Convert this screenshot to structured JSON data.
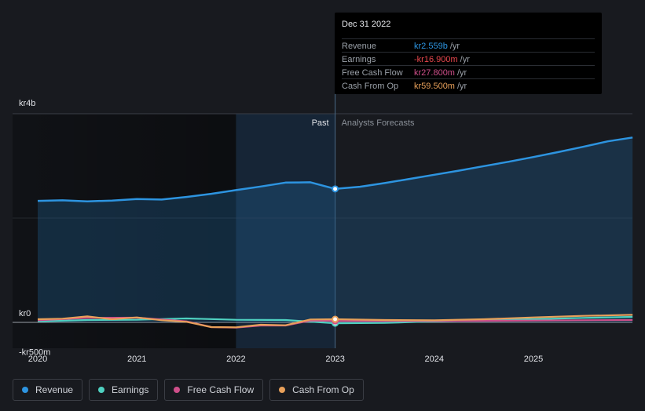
{
  "tooltip": {
    "date": "Dec 31 2022",
    "rows": [
      {
        "label": "Revenue",
        "value": "kr2.559b",
        "unit": "/yr",
        "color": "#2d94e0"
      },
      {
        "label": "Earnings",
        "value": "-kr16.900m",
        "unit": "/yr",
        "color": "#e8474d"
      },
      {
        "label": "Free Cash Flow",
        "value": "kr27.800m",
        "unit": "/yr",
        "color": "#cf4f8a"
      },
      {
        "label": "Cash From Op",
        "value": "kr59.500m",
        "unit": "/yr",
        "color": "#e8a05a"
      }
    ]
  },
  "legend": [
    {
      "label": "Revenue",
      "color": "#2d94e0"
    },
    {
      "label": "Earnings",
      "color": "#4fd1c1"
    },
    {
      "label": "Free Cash Flow",
      "color": "#cf4f8a"
    },
    {
      "label": "Cash From Op",
      "color": "#e8a05a"
    }
  ],
  "chart_data": {
    "type": "line",
    "ylim": [
      -500,
      4000
    ],
    "y_ticks": [
      {
        "value": 4000,
        "label": "kr4b"
      },
      {
        "value": 0,
        "label": "kr0"
      },
      {
        "value": -500,
        "label": "-kr500m"
      }
    ],
    "x_ticks": [
      {
        "value": 2020,
        "label": "2020"
      },
      {
        "value": 2021,
        "label": "2021"
      },
      {
        "value": 2022,
        "label": "2022"
      },
      {
        "value": 2023,
        "label": "2023"
      },
      {
        "value": 2024,
        "label": "2024"
      },
      {
        "value": 2025,
        "label": "2025"
      }
    ],
    "xlim": [
      2019.75,
      2026.0
    ],
    "divider": {
      "x": 2023.0,
      "past_label": "Past",
      "forecast_label": "Analysts Forecasts"
    },
    "highlight_start": 2022.0,
    "series": [
      {
        "name": "Revenue",
        "color": "#2d94e0",
        "fill": true,
        "points": [
          [
            2020.0,
            2330
          ],
          [
            2020.25,
            2340
          ],
          [
            2020.5,
            2320
          ],
          [
            2020.75,
            2335
          ],
          [
            2021.0,
            2365
          ],
          [
            2021.25,
            2355
          ],
          [
            2021.5,
            2405
          ],
          [
            2021.75,
            2465
          ],
          [
            2022.0,
            2535
          ],
          [
            2022.25,
            2605
          ],
          [
            2022.5,
            2680
          ],
          [
            2022.75,
            2685
          ],
          [
            2023.0,
            2559
          ],
          [
            2023.25,
            2600
          ],
          [
            2023.5,
            2670
          ],
          [
            2023.75,
            2750
          ],
          [
            2024.0,
            2830
          ],
          [
            2024.25,
            2910
          ],
          [
            2024.5,
            2995
          ],
          [
            2024.75,
            3080
          ],
          [
            2025.0,
            3170
          ],
          [
            2025.25,
            3265
          ],
          [
            2025.5,
            3365
          ],
          [
            2025.75,
            3470
          ],
          [
            2026.0,
            3545
          ]
        ]
      },
      {
        "name": "Earnings",
        "color": "#4fd1c1",
        "points": [
          [
            2020.0,
            20
          ],
          [
            2020.5,
            45
          ],
          [
            2021.0,
            50
          ],
          [
            2021.5,
            75
          ],
          [
            2022.0,
            50
          ],
          [
            2022.5,
            45
          ],
          [
            2023.0,
            -16.9
          ],
          [
            2023.5,
            -10
          ],
          [
            2024.0,
            20
          ],
          [
            2024.5,
            45
          ],
          [
            2025.0,
            60
          ],
          [
            2025.5,
            85
          ],
          [
            2026.0,
            105
          ]
        ]
      },
      {
        "name": "Free Cash Flow",
        "color": "#cf4f8a",
        "points": [
          [
            2020.0,
            40
          ],
          [
            2020.5,
            85
          ],
          [
            2021.0,
            90
          ],
          [
            2021.5,
            20
          ],
          [
            2021.75,
            -90
          ],
          [
            2022.0,
            -100
          ],
          [
            2022.25,
            -60
          ],
          [
            2022.5,
            -60
          ],
          [
            2022.75,
            35
          ],
          [
            2023.0,
            27.8
          ],
          [
            2023.5,
            25
          ],
          [
            2024.0,
            30
          ],
          [
            2024.5,
            30
          ],
          [
            2025.0,
            35
          ],
          [
            2025.5,
            40
          ],
          [
            2026.0,
            45
          ]
        ]
      },
      {
        "name": "Cash From Op",
        "color": "#e8a05a",
        "points": [
          [
            2020.0,
            60
          ],
          [
            2020.25,
            70
          ],
          [
            2020.5,
            115
          ],
          [
            2020.75,
            60
          ],
          [
            2021.0,
            95
          ],
          [
            2021.25,
            40
          ],
          [
            2021.5,
            10
          ],
          [
            2021.75,
            -90
          ],
          [
            2022.0,
            -95
          ],
          [
            2022.25,
            -45
          ],
          [
            2022.5,
            -55
          ],
          [
            2022.75,
            55
          ],
          [
            2023.0,
            59.5
          ],
          [
            2023.5,
            45
          ],
          [
            2024.0,
            40
          ],
          [
            2024.5,
            60
          ],
          [
            2025.0,
            95
          ],
          [
            2025.5,
            125
          ],
          [
            2026.0,
            145
          ]
        ]
      }
    ]
  }
}
